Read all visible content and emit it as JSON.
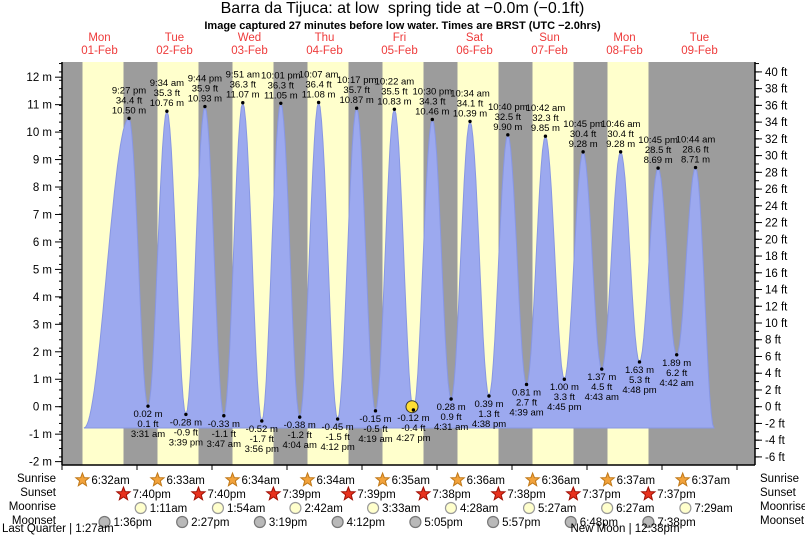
{
  "title": "Barra da Tijuca: at low  spring tide at −0.0m (−0.1ft)",
  "subtitle": "Image captured 27 minutes before low water. Times are BRST (UTC −2.0hrs)",
  "colors": {
    "day_band": "#FFFFCC",
    "night_band": "#9C9C9C",
    "tide_fill": "#9CA9EF",
    "tide_edge": "#8897E2",
    "day_label_red": "#EE3B3B",
    "sunrise_icon": "#F2A33C",
    "sunrise_icon_edge": "#C07818",
    "sunset_icon": "#E8321E",
    "sunset_icon_edge": "#A01005",
    "moonrise_icon": "#FFFFCC",
    "moonrise_icon_edge": "#999999",
    "moonset_icon": "#B9B9B9",
    "moonset_icon_edge": "#777777",
    "current_marker": "#FFDD33"
  },
  "days": [
    {
      "weekday": "Mon",
      "date": "01-Feb"
    },
    {
      "weekday": "Tue",
      "date": "02-Feb"
    },
    {
      "weekday": "Wed",
      "date": "03-Feb"
    },
    {
      "weekday": "Thu",
      "date": "04-Feb"
    },
    {
      "weekday": "Fri",
      "date": "05-Feb"
    },
    {
      "weekday": "Sat",
      "date": "06-Feb"
    },
    {
      "weekday": "Sun",
      "date": "07-Feb"
    },
    {
      "weekday": "Mon",
      "date": "08-Feb"
    },
    {
      "weekday": "Tue",
      "date": "09-Feb"
    }
  ],
  "y_axis": {
    "left_unit": "m",
    "left_ticks": [
      12,
      11,
      10,
      9,
      8,
      7,
      6,
      5,
      4,
      3,
      2,
      1,
      0,
      -1,
      -2
    ],
    "right_unit": "ft",
    "right_ticks": [
      40,
      38,
      36,
      34,
      32,
      30,
      28,
      26,
      24,
      22,
      20,
      18,
      16,
      14,
      12,
      10,
      8,
      6,
      4,
      2,
      0,
      -2,
      -4,
      -6
    ]
  },
  "chart_data": {
    "type": "area",
    "title": "Barra da Tijuca tide curve, 01-Feb to 09-Feb",
    "ylabel_left": "m",
    "ylabel_right": "ft",
    "ylim_m": [
      -2.15,
      12.55
    ],
    "baseline_m": -0.78,
    "high_tides": [
      {
        "day": 0,
        "hour": 21.45,
        "time": "9:27 pm",
        "ft_label": "34.4 ft",
        "m_label": "10.50 m",
        "m": 10.5
      },
      {
        "day": 1,
        "hour": 9.567,
        "time": "9:34 am",
        "ft_label": "35.3 ft",
        "m_label": "10.76 m",
        "m": 10.76
      },
      {
        "day": 1,
        "hour": 21.733,
        "time": "9:44 pm",
        "ft_label": "35.9 ft",
        "m_label": "10.93 m",
        "m": 10.93
      },
      {
        "day": 2,
        "hour": 9.85,
        "time": "9:51 am",
        "ft_label": "36.3 ft",
        "m_label": "11.07 m",
        "m": 11.07
      },
      {
        "day": 2,
        "hour": 22.017,
        "time": "10:01 pm",
        "ft_label": "36.3 ft",
        "m_label": "11.05 m",
        "m": 11.05
      },
      {
        "day": 3,
        "hour": 10.117,
        "time": "10:07 am",
        "ft_label": "36.4 ft",
        "m_label": "11.08 m",
        "m": 11.08
      },
      {
        "day": 3,
        "hour": 22.283,
        "time": "10:17 pm",
        "ft_label": "35.7 ft",
        "m_label": "10.87 m",
        "m": 10.87
      },
      {
        "day": 4,
        "hour": 10.367,
        "time": "10:22 am",
        "ft_label": "35.5 ft",
        "m_label": "10.83 m",
        "m": 10.83
      },
      {
        "day": 4,
        "hour": 22.5,
        "time": "10:30 pm",
        "ft_label": "34.3 ft",
        "m_label": "10.46 m",
        "m": 10.46
      },
      {
        "day": 5,
        "hour": 10.567,
        "time": "10:34 am",
        "ft_label": "34.1 ft",
        "m_label": "10.39 m",
        "m": 10.39
      },
      {
        "day": 5,
        "hour": 22.667,
        "time": "10:40 pm",
        "ft_label": "32.5 ft",
        "m_label": "9.90 m",
        "m": 9.9
      },
      {
        "day": 6,
        "hour": 10.7,
        "time": "10:42 am",
        "ft_label": "32.3 ft",
        "m_label": "9.85 m",
        "m": 9.85
      },
      {
        "day": 6,
        "hour": 22.75,
        "time": "10:45 pm",
        "ft_label": "30.4 ft",
        "m_label": "9.28 m",
        "m": 9.28
      },
      {
        "day": 7,
        "hour": 10.767,
        "time": "10:46 am",
        "ft_label": "30.4 ft",
        "m_label": "9.28 m",
        "m": 9.28
      },
      {
        "day": 7,
        "hour": 22.75,
        "time": "10:45 pm",
        "ft_label": "28.5 ft",
        "m_label": "8.69 m",
        "m": 8.69
      },
      {
        "day": 8,
        "hour": 10.733,
        "time": "10:44 am",
        "ft_label": "28.6 ft",
        "m_label": "8.71 m",
        "m": 8.71
      }
    ],
    "low_tides": [
      {
        "day": 1,
        "hour": 3.517,
        "time": "3:31 am",
        "ft_label": "0.1 ft",
        "m_label": "0.02 m",
        "m": 0.02
      },
      {
        "day": 1,
        "hour": 15.65,
        "time": "3:39 pm",
        "ft_label": "-0.9 ft",
        "m_label": "-0.28 m",
        "m": -0.28
      },
      {
        "day": 2,
        "hour": 3.783,
        "time": "3:47 am",
        "ft_label": "-1.1 ft",
        "m_label": "-0.33 m",
        "m": -0.33
      },
      {
        "day": 2,
        "hour": 15.933,
        "time": "3:56 pm",
        "ft_label": "-1.7 ft",
        "m_label": "-0.52 m",
        "m": -0.52
      },
      {
        "day": 3,
        "hour": 4.067,
        "time": "4:04 am",
        "ft_label": "-1.2 ft",
        "m_label": "-0.38 m",
        "m": -0.38
      },
      {
        "day": 3,
        "hour": 16.2,
        "time": "4:12 pm",
        "ft_label": "-1.5 ft",
        "m_label": "-0.45 m",
        "m": -0.45
      },
      {
        "day": 4,
        "hour": 4.317,
        "time": "4:19 am",
        "ft_label": "-0.5 ft",
        "m_label": "-0.15 m",
        "m": -0.15
      },
      {
        "day": 4,
        "hour": 16.45,
        "time": "4:27 pm",
        "ft_label": "-0.4 ft",
        "m_label": "-0.12 m",
        "m": -0.12,
        "current": true
      },
      {
        "day": 5,
        "hour": 4.517,
        "time": "4:31 am",
        "ft_label": "0.9 ft",
        "m_label": "0.28 m",
        "m": 0.28
      },
      {
        "day": 5,
        "hour": 16.633,
        "time": "4:38 pm",
        "ft_label": "1.3 ft",
        "m_label": "0.39 m",
        "m": 0.39
      },
      {
        "day": 6,
        "hour": 4.65,
        "time": "4:39 am",
        "ft_label": "2.7 ft",
        "m_label": "0.81 m",
        "m": 0.81
      },
      {
        "day": 6,
        "hour": 16.75,
        "time": "4:45 pm",
        "ft_label": "3.3 ft",
        "m_label": "1.00 m",
        "m": 1.0
      },
      {
        "day": 7,
        "hour": 4.717,
        "time": "4:43 am",
        "ft_label": "4.5 ft",
        "m_label": "1.37 m",
        "m": 1.37
      },
      {
        "day": 7,
        "hour": 16.8,
        "time": "4:48 pm",
        "ft_label": "5.3 ft",
        "m_label": "1.63 m",
        "m": 1.63
      },
      {
        "day": 8,
        "hour": 4.7,
        "time": "4:42 am",
        "ft_label": "6.2 ft",
        "m_label": "1.89 m",
        "m": 1.89
      }
    ],
    "current_time_marker": {
      "day": 4,
      "hour": 16.0,
      "height_m": 0.0
    }
  },
  "astro": {
    "sunrise": {
      "label": "Sunrise",
      "times": [
        {
          "day": 0,
          "hour": 6.533,
          "time": "6:32am"
        },
        {
          "day": 1,
          "hour": 6.55,
          "time": "6:33am"
        },
        {
          "day": 2,
          "hour": 6.567,
          "time": "6:34am"
        },
        {
          "day": 3,
          "hour": 6.567,
          "time": "6:34am"
        },
        {
          "day": 4,
          "hour": 6.583,
          "time": "6:35am"
        },
        {
          "day": 5,
          "hour": 6.6,
          "time": "6:36am"
        },
        {
          "day": 6,
          "hour": 6.6,
          "time": "6:36am"
        },
        {
          "day": 7,
          "hour": 6.617,
          "time": "6:37am"
        },
        {
          "day": 8,
          "hour": 6.617,
          "time": "6:37am"
        }
      ]
    },
    "sunset": {
      "label": "Sunset",
      "times": [
        {
          "day": 0,
          "hour": 19.667,
          "time": "7:40pm"
        },
        {
          "day": 1,
          "hour": 19.667,
          "time": "7:40pm"
        },
        {
          "day": 2,
          "hour": 19.65,
          "time": "7:39pm"
        },
        {
          "day": 3,
          "hour": 19.65,
          "time": "7:39pm"
        },
        {
          "day": 4,
          "hour": 19.633,
          "time": "7:38pm"
        },
        {
          "day": 5,
          "hour": 19.633,
          "time": "7:38pm"
        },
        {
          "day": 6,
          "hour": 19.617,
          "time": "7:37pm"
        },
        {
          "day": 7,
          "hour": 19.617,
          "time": "7:37pm"
        }
      ]
    },
    "moonrise": {
      "label": "Moonrise",
      "times": [
        {
          "day": 1,
          "hour": 1.183,
          "time": "1:11am"
        },
        {
          "day": 2,
          "hour": 1.9,
          "time": "1:54am"
        },
        {
          "day": 3,
          "hour": 2.7,
          "time": "2:42am"
        },
        {
          "day": 4,
          "hour": 3.55,
          "time": "3:33am"
        },
        {
          "day": 5,
          "hour": 4.467,
          "time": "4:28am"
        },
        {
          "day": 6,
          "hour": 5.45,
          "time": "5:27am"
        },
        {
          "day": 7,
          "hour": 6.45,
          "time": "6:27am"
        },
        {
          "day": 8,
          "hour": 7.483,
          "time": "7:29am"
        }
      ]
    },
    "moonset": {
      "label": "Moonset",
      "times": [
        {
          "day": 0,
          "hour": 13.6,
          "time": "1:36pm"
        },
        {
          "day": 1,
          "hour": 14.45,
          "time": "2:27pm"
        },
        {
          "day": 2,
          "hour": 15.317,
          "time": "3:19pm"
        },
        {
          "day": 3,
          "hour": 16.2,
          "time": "4:12pm"
        },
        {
          "day": 4,
          "hour": 17.083,
          "time": "5:05pm"
        },
        {
          "day": 5,
          "hour": 17.95,
          "time": "5:57pm"
        },
        {
          "day": 6,
          "hour": 18.8,
          "time": "6:48pm"
        },
        {
          "day": 7,
          "hour": 19.633,
          "time": "7:38pm"
        }
      ]
    }
  },
  "moon_phases": {
    "last_quarter": "Last Quarter | 1:27am",
    "new_moon": "New Moon | 12:38pm"
  }
}
